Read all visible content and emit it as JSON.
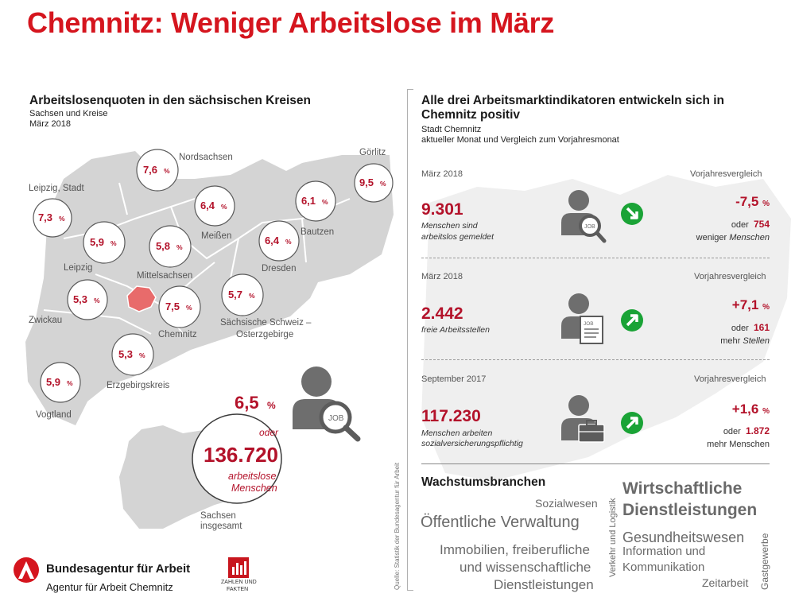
{
  "header": {
    "title": "Chemnitz: Weniger Arbeitslose im März"
  },
  "left": {
    "title": "Arbeitslosenquoten in den sächsischen Kreisen",
    "subtitle1": "Sachsen und Kreise",
    "subtitle2": "März 2018",
    "pct_sign": "%",
    "regions": [
      {
        "name": "Nordsachsen",
        "value": "7,6"
      },
      {
        "name": "Görlitz",
        "value": "9,5"
      },
      {
        "name": "Leipzig, Stadt",
        "value": "7,3"
      },
      {
        "name": "Meißen",
        "value": "6,4"
      },
      {
        "name": "Bautzen",
        "value": "6,1"
      },
      {
        "name": "Leipzig",
        "value": "5,9"
      },
      {
        "name": "Mittelsachsen",
        "value": "5,8"
      },
      {
        "name": "Dresden",
        "value": "6,4"
      },
      {
        "name": "Zwickau",
        "value": "5,3"
      },
      {
        "name": "Chemnitz",
        "value": "7,5"
      },
      {
        "name": "Sächsische Schweiz –",
        "name2": "Osterzgebirge",
        "value": "5,7"
      },
      {
        "name": "Erzgebirgskreis",
        "value": "5,3"
      },
      {
        "name": "Vogtland",
        "value": "5,9"
      }
    ],
    "total": {
      "rate": "6,5",
      "pct": "%",
      "oder": "oder",
      "count": "136.720",
      "line1": "arbeitslose",
      "line2": "Menschen",
      "region1": "Sachsen",
      "region2": "insgesamt",
      "badge": "JOB"
    }
  },
  "right": {
    "title_line1": "Alle drei Arbeitsmarktindikatoren entwickeln sich in",
    "title_line2": "Chemnitz positiv",
    "subtitle1": "Stadt Chemnitz",
    "subtitle2": "aktueller Monat und Vergleich zum Vorjahresmonat",
    "indicators": [
      {
        "period": "März 2018",
        "cmp_head": "Vorjahresvergleich",
        "value": "9.301",
        "desc1": "Menschen sind",
        "desc2": "arbeitslos gemeldet",
        "delta": "-7,5",
        "pct": "%",
        "oder": "oder",
        "abs": "754",
        "cmp_desc": "weniger",
        "cmp_desc2": "Menschen",
        "trend": "down",
        "icon_text": "JOB"
      },
      {
        "period": "März 2018",
        "cmp_head": "Vorjahresvergleich",
        "value": "2.442",
        "desc1": "freie Arbeitsstellen",
        "desc2": "",
        "delta": "+7,1",
        "pct": "%",
        "oder": "oder",
        "abs": "161",
        "cmp_desc": "mehr",
        "cmp_desc2": "Stellen",
        "trend": "up",
        "icon_text": "JOB"
      },
      {
        "period": "September 2017",
        "cmp_head": "Vorjahresvergleich",
        "value": "117.230",
        "desc1": "Menschen arbeiten",
        "desc2": "sozialversicherungspflichtig",
        "delta": "+1,6",
        "pct": "%",
        "oder": "oder",
        "abs": "1.872",
        "cmp_desc": "mehr Menschen",
        "cmp_desc2": "",
        "trend": "up",
        "icon_text": ""
      }
    ],
    "growth": {
      "title": "Wachstumsbranchen",
      "words": {
        "sozialwesen": "Sozialwesen",
        "verwaltung": "Öffentliche Verwaltung",
        "immo1": "Immobilien, freiberufliche",
        "immo2": "und wissenschaftliche",
        "immo3": "Dienstleistungen",
        "verkehr": "Verkehr und Logistik",
        "wirtschaft1": "Wirtschaftliche",
        "wirtschaft2": "Dienstleistungen",
        "gesundheit": "Gesundheitswesen",
        "info1": "Information und",
        "info2": "Kommunikation",
        "zeitarbeit": "Zeitarbeit",
        "gastgewerbe": "Gastgewerbe"
      }
    }
  },
  "source": "Quelle: Statistik der Bundesagentur für Arbeit",
  "footer": {
    "org": "Bundesagentur für Arbeit",
    "agency": "Agentur für Arbeit Chemnitz",
    "zahlen1": "ZAHLEN UND",
    "zahlen2": "FAKTEN"
  },
  "colors": {
    "accent": "#d5151e",
    "value_red": "#b3122a",
    "arrow_green": "#1aa336",
    "map_gray": "#d4d4d4"
  },
  "icons": [
    "person-job-icon",
    "person-document-icon",
    "person-briefcase-icon",
    "arrow-down-right-icon",
    "arrow-up-right-icon",
    "ba-logo-icon",
    "zahlen-fakten-icon"
  ]
}
